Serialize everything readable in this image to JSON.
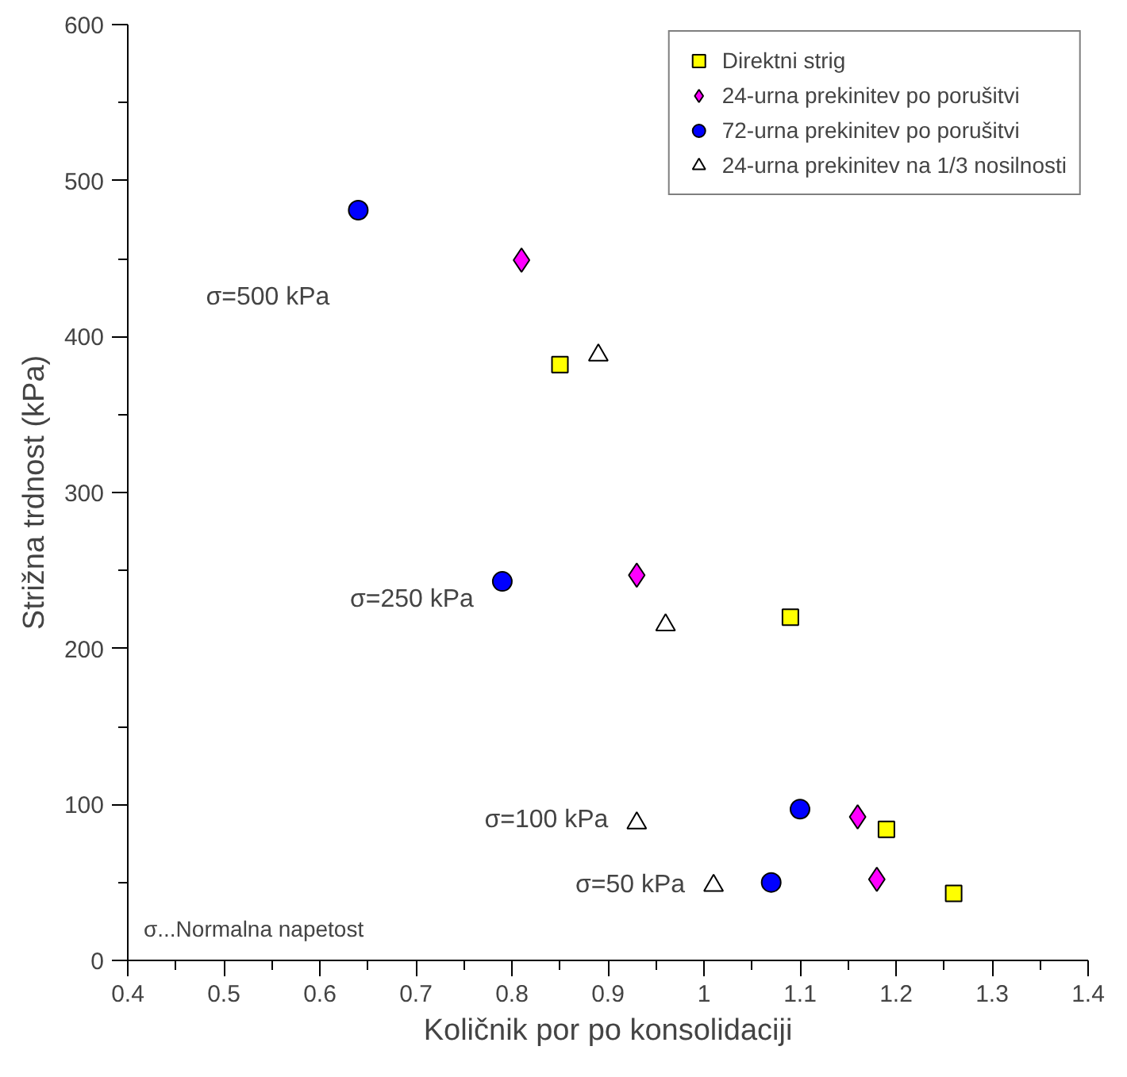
{
  "chart_data": {
    "type": "scatter",
    "xlabel": "Količnik por po konsolidaciji",
    "ylabel": "Strižna trdnost (kPa)",
    "xlim": [
      0.4,
      1.4
    ],
    "xticks": [
      0.4,
      0.5,
      0.6,
      0.7,
      0.8,
      0.9,
      1,
      1.1,
      1.2,
      1.3,
      1.4
    ],
    "ylim": [
      0,
      600
    ],
    "yticks": [
      0,
      100,
      200,
      300,
      400,
      500,
      600
    ],
    "grid": false,
    "legend": "top right",
    "x": [
      0.64,
      0.79,
      1.1,
      1.07
    ],
    "series": [
      {
        "name": "Direktni strig",
        "color": "#ffff00",
        "marker": "square",
        "x": [
          0.85,
          1.09,
          1.19,
          1.26
        ],
        "values": [
          382,
          220,
          84,
          43
        ]
      },
      {
        "name": "24-urna prekinitev po porušitvi",
        "color": "#ff00ff",
        "marker": "diamond",
        "x": [
          0.81,
          0.93,
          1.16,
          1.18
        ],
        "values": [
          449,
          247,
          92,
          52
        ]
      },
      {
        "name": "72-urna prekinitev po porušitvi",
        "color": "#0000ff",
        "marker": "circle",
        "values": [
          481,
          243,
          97,
          50
        ]
      },
      {
        "name": "24-urna prekinitev na 1/3 nosilnosti",
        "color": "#ffffff",
        "marker": "triangle",
        "x": [
          0.89,
          0.96,
          0.93,
          1.01
        ],
        "values": [
          388,
          215,
          88,
          48
        ]
      }
    ],
    "annotations": [
      "σ=500 kPa",
      "σ=250 kPa",
      "σ=100 kPa",
      "σ=50 kPa",
      "σ...Normalna napetost"
    ]
  }
}
